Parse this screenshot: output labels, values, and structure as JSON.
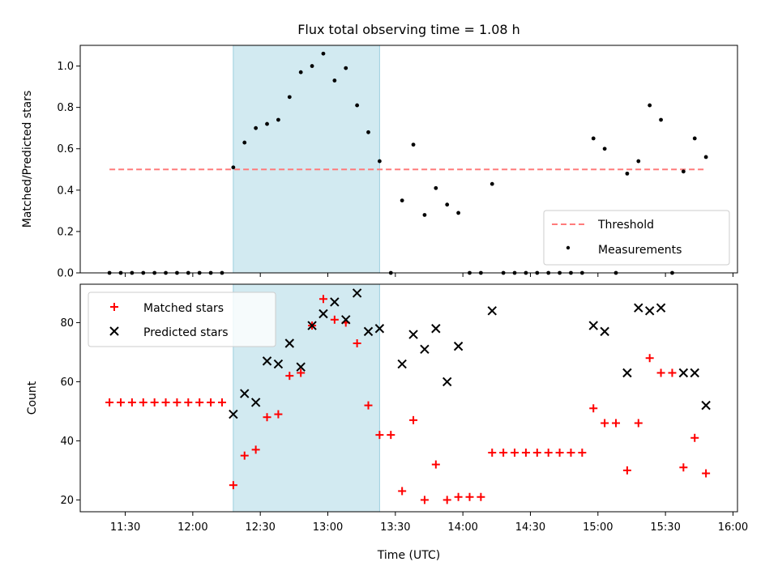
{
  "colors": {
    "matched": "#ff0000",
    "predicted": "#000000",
    "threshold": "#ff7b7b",
    "shade": "#add8e6",
    "measurements": "#000000"
  },
  "chart_data": [
    {
      "type": "scatter",
      "panel": "top",
      "title": "Flux total observing time = 1.08 h",
      "xlabel": "",
      "ylabel": "Matched/Predicted stars",
      "xlim": [
        "11:10",
        "16:02"
      ],
      "ylim": [
        0,
        1.1
      ],
      "y_ticks": [
        "0.0",
        "0.2",
        "0.4",
        "0.6",
        "0.8",
        "1.0"
      ],
      "y_tick_values": [
        0.0,
        0.2,
        0.4,
        0.6,
        0.8,
        1.0
      ],
      "x_tick_values": [
        "11:30",
        "12:00",
        "12:30",
        "13:00",
        "13:30",
        "14:00",
        "14:30",
        "15:00",
        "15:30",
        "16:00"
      ],
      "shaded_interval": [
        "12:18",
        "13:23"
      ],
      "legend_position": "lower-right",
      "threshold": {
        "name": "Threshold",
        "y": 0.5,
        "x_range": [
          "11:23",
          "15:48"
        ]
      },
      "series": [
        {
          "name": "Measurements",
          "points": [
            [
              "11:23",
              0
            ],
            [
              "11:28",
              0
            ],
            [
              "11:33",
              0
            ],
            [
              "11:38",
              0
            ],
            [
              "11:43",
              0
            ],
            [
              "11:48",
              0
            ],
            [
              "11:53",
              0
            ],
            [
              "11:58",
              0
            ],
            [
              "12:03",
              0
            ],
            [
              "12:08",
              0
            ],
            [
              "12:13",
              0
            ],
            [
              "12:18",
              0.51
            ],
            [
              "12:23",
              0.63
            ],
            [
              "12:28",
              0.7
            ],
            [
              "12:33",
              0.72
            ],
            [
              "12:38",
              0.74
            ],
            [
              "12:43",
              0.85
            ],
            [
              "12:48",
              0.97
            ],
            [
              "12:53",
              1.0
            ],
            [
              "12:58",
              1.06
            ],
            [
              "13:03",
              0.93
            ],
            [
              "13:08",
              0.99
            ],
            [
              "13:13",
              0.81
            ],
            [
              "13:18",
              0.68
            ],
            [
              "13:23",
              0.54
            ],
            [
              "13:28",
              0
            ],
            [
              "13:33",
              0.35
            ],
            [
              "13:38",
              0.62
            ],
            [
              "13:43",
              0.28
            ],
            [
              "13:48",
              0.41
            ],
            [
              "13:53",
              0.33
            ],
            [
              "13:58",
              0.29
            ],
            [
              "14:03",
              0
            ],
            [
              "14:08",
              0
            ],
            [
              "14:13",
              0.43
            ],
            [
              "14:18",
              0
            ],
            [
              "14:23",
              0
            ],
            [
              "14:28",
              0
            ],
            [
              "14:33",
              0
            ],
            [
              "14:38",
              0
            ],
            [
              "14:43",
              0
            ],
            [
              "14:48",
              0
            ],
            [
              "14:53",
              0
            ],
            [
              "14:58",
              0.65
            ],
            [
              "15:03",
              0.6
            ],
            [
              "15:08",
              0
            ],
            [
              "15:13",
              0.48
            ],
            [
              "15:18",
              0.54
            ],
            [
              "15:23",
              0.81
            ],
            [
              "15:28",
              0.74
            ],
            [
              "15:33",
              0
            ],
            [
              "15:38",
              0.49
            ],
            [
              "15:43",
              0.65
            ],
            [
              "15:48",
              0.56
            ]
          ]
        }
      ]
    },
    {
      "type": "scatter",
      "panel": "bottom",
      "title": "",
      "xlabel": "Time (UTC)",
      "ylabel": "Count",
      "xlim": [
        "11:10",
        "16:02"
      ],
      "ylim": [
        16,
        93
      ],
      "y_ticks": [
        "20",
        "40",
        "60",
        "80"
      ],
      "y_tick_values": [
        20,
        40,
        60,
        80
      ],
      "x_ticks": [
        "11:30",
        "12:00",
        "12:30",
        "13:00",
        "13:30",
        "14:00",
        "14:30",
        "15:00",
        "15:30",
        "16:00"
      ],
      "x_tick_values": [
        "11:30",
        "12:00",
        "12:30",
        "13:00",
        "13:30",
        "14:00",
        "14:30",
        "15:00",
        "15:30",
        "16:00"
      ],
      "shaded_interval": [
        "12:18",
        "13:23"
      ],
      "legend_position": "upper-left",
      "series": [
        {
          "name": "Matched stars",
          "marker": "plus",
          "points": [
            [
              "11:23",
              53
            ],
            [
              "11:28",
              53
            ],
            [
              "11:33",
              53
            ],
            [
              "11:38",
              53
            ],
            [
              "11:43",
              53
            ],
            [
              "11:48",
              53
            ],
            [
              "11:53",
              53
            ],
            [
              "11:58",
              53
            ],
            [
              "12:03",
              53
            ],
            [
              "12:08",
              53
            ],
            [
              "12:13",
              53
            ],
            [
              "12:18",
              25
            ],
            [
              "12:23",
              35
            ],
            [
              "12:28",
              37
            ],
            [
              "12:33",
              48
            ],
            [
              "12:38",
              49
            ],
            [
              "12:43",
              62
            ],
            [
              "12:48",
              63
            ],
            [
              "12:53",
              79
            ],
            [
              "12:58",
              88
            ],
            [
              "13:03",
              81
            ],
            [
              "13:08",
              80
            ],
            [
              "13:13",
              73
            ],
            [
              "13:18",
              52
            ],
            [
              "13:23",
              42
            ],
            [
              "13:28",
              42
            ],
            [
              "13:33",
              23
            ],
            [
              "13:38",
              47
            ],
            [
              "13:43",
              20
            ],
            [
              "13:48",
              32
            ],
            [
              "13:53",
              20
            ],
            [
              "13:58",
              21
            ],
            [
              "14:03",
              21
            ],
            [
              "14:08",
              21
            ],
            [
              "14:13",
              36
            ],
            [
              "14:18",
              36
            ],
            [
              "14:23",
              36
            ],
            [
              "14:28",
              36
            ],
            [
              "14:33",
              36
            ],
            [
              "14:38",
              36
            ],
            [
              "14:43",
              36
            ],
            [
              "14:48",
              36
            ],
            [
              "14:53",
              36
            ],
            [
              "14:58",
              51
            ],
            [
              "15:03",
              46
            ],
            [
              "15:08",
              46
            ],
            [
              "15:13",
              30
            ],
            [
              "15:18",
              46
            ],
            [
              "15:23",
              68
            ],
            [
              "15:28",
              63
            ],
            [
              "15:33",
              63
            ],
            [
              "15:38",
              31
            ],
            [
              "15:43",
              41
            ],
            [
              "15:48",
              29
            ]
          ]
        },
        {
          "name": "Predicted stars",
          "marker": "x",
          "points": [
            [
              "12:18",
              49
            ],
            [
              "12:23",
              56
            ],
            [
              "12:28",
              53
            ],
            [
              "12:33",
              67
            ],
            [
              "12:38",
              66
            ],
            [
              "12:43",
              73
            ],
            [
              "12:48",
              65
            ],
            [
              "12:53",
              79
            ],
            [
              "12:58",
              83
            ],
            [
              "13:03",
              87
            ],
            [
              "13:08",
              81
            ],
            [
              "13:13",
              90
            ],
            [
              "13:18",
              77
            ],
            [
              "13:23",
              78
            ],
            [
              "13:33",
              66
            ],
            [
              "13:38",
              76
            ],
            [
              "13:43",
              71
            ],
            [
              "13:48",
              78
            ],
            [
              "13:53",
              60
            ],
            [
              "13:58",
              72
            ],
            [
              "14:13",
              84
            ],
            [
              "14:58",
              79
            ],
            [
              "15:03",
              77
            ],
            [
              "15:13",
              63
            ],
            [
              "15:18",
              85
            ],
            [
              "15:23",
              84
            ],
            [
              "15:28",
              85
            ],
            [
              "15:38",
              63
            ],
            [
              "15:43",
              63
            ],
            [
              "15:48",
              52
            ]
          ]
        }
      ]
    }
  ]
}
